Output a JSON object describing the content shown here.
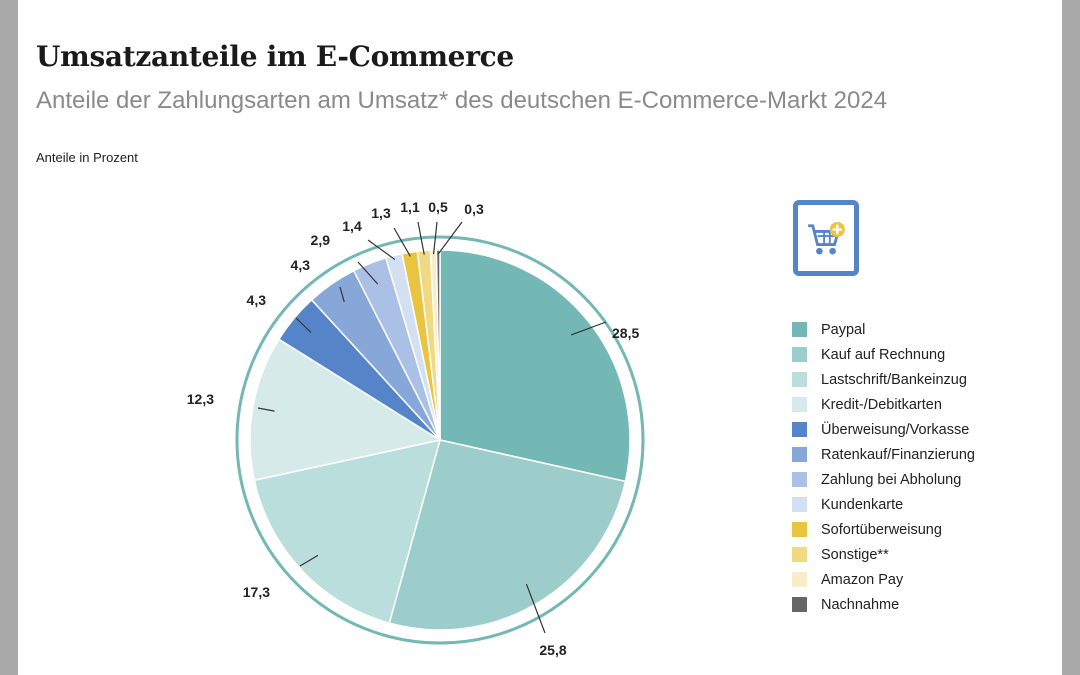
{
  "title": "Umsatzanteile im E-Commerce",
  "subtitle": "Anteile der Zahlungsarten am Umsatz* des deutschen E-Commerce-Markt 2024",
  "unit_label": "Anteile in Prozent",
  "icon": "shopping-cart-plus-icon",
  "chart_data": {
    "type": "pie",
    "title": "Umsatzanteile im E-Commerce",
    "start": "top, clockwise",
    "legend_position": "right",
    "slices": [
      {
        "label": "Paypal",
        "value": 28.5,
        "display": "28,5",
        "color": "#74b8b5"
      },
      {
        "label": "Kauf auf Rechnung",
        "value": 25.8,
        "display": "25,8",
        "color": "#9ccdcb"
      },
      {
        "label": "Lastschrift/Bankeinzug",
        "value": 17.3,
        "display": "17,3",
        "color": "#b9dedc"
      },
      {
        "label": "Kredit-/Debitkarten",
        "value": 12.3,
        "display": "12,3",
        "color": "#d5eae9"
      },
      {
        "label": "Überweisung/Vorkasse",
        "value": 4.3,
        "display": "4,3",
        "color": "#5585c8"
      },
      {
        "label": "Ratenkauf/Finanzierung",
        "value": 4.3,
        "display": "4,3",
        "color": "#87a7d8"
      },
      {
        "label": "Zahlung bei Abholung",
        "value": 2.9,
        "display": "2,9",
        "color": "#aac0e4"
      },
      {
        "label": "Kundenkarte",
        "value": 1.4,
        "display": "1,4",
        "color": "#d3e0f2"
      },
      {
        "label": "Sofortüberweisung",
        "value": 1.3,
        "display": "1,3",
        "color": "#e8c440"
      },
      {
        "label": "Sonstige**",
        "value": 1.1,
        "display": "1,1",
        "color": "#f0d980"
      },
      {
        "label": "Amazon Pay",
        "value": 0.5,
        "display": "0,5",
        "color": "#f7edc6"
      },
      {
        "label": "Nachnahme",
        "value": 0.3,
        "display": "0,3",
        "color": "#666666"
      }
    ],
    "ring_color": "#74b8b5"
  }
}
